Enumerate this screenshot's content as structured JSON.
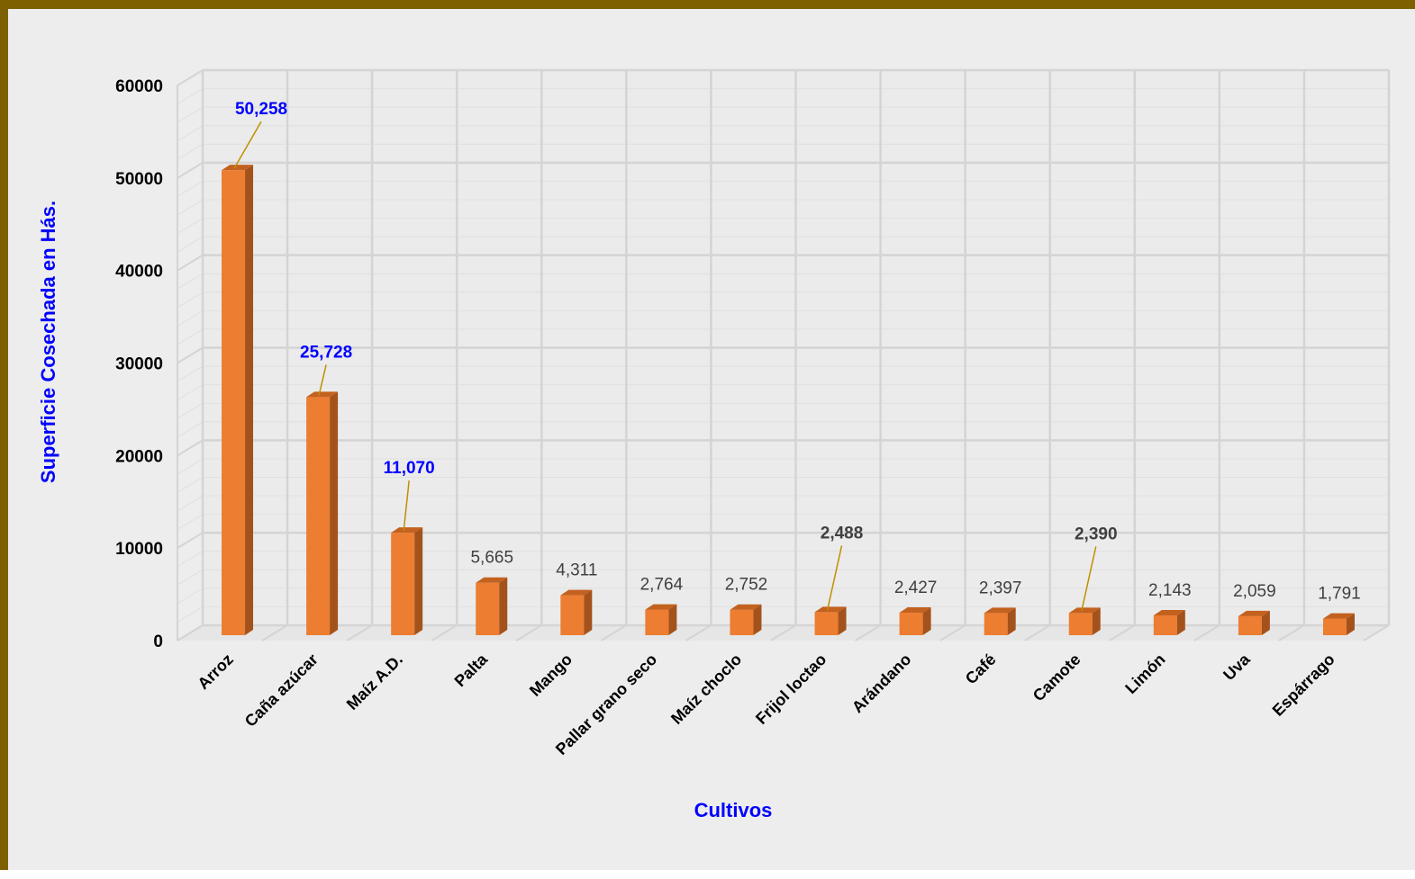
{
  "chart_data": {
    "type": "bar",
    "title": "",
    "xlabel": "Cultivos",
    "ylabel": "Superficie Cosechada en Hás.",
    "categories": [
      "Arroz",
      "Caña azúcar",
      "Maíz A.D.",
      "Palta",
      "Mango",
      "Pallar grano seco",
      "Maíz choclo",
      "Frijol loctao",
      "Arándano",
      "Café",
      "Camote",
      "Limón",
      "Uva",
      "Espárrago"
    ],
    "values": [
      50258,
      25728,
      11070,
      5665,
      4311,
      2764,
      2752,
      2488,
      2427,
      2397,
      2390,
      2143,
      2059,
      1791
    ],
    "data_labels": [
      "50,258",
      "25,728",
      "11,070",
      "5,665",
      "4,311",
      "2,764",
      "2,752",
      "2,488",
      "2,427",
      "2,397",
      "2,390",
      "2,143",
      "2,059",
      "1,791"
    ],
    "yticks": [
      "0",
      "10000",
      "20000",
      "30000",
      "40000",
      "50000",
      "60000"
    ],
    "ylim": [
      0,
      60000
    ],
    "grid": true,
    "legend": "none",
    "colors": {
      "bar_front": "#ED7D31",
      "bar_side": "#A4521B",
      "bar_top": "#C3611F",
      "axis_title": "#0000FF",
      "highlight_label": "#0000FF",
      "emphasis_label": "#404040",
      "label": "#404040",
      "leader_line": "#BF9000",
      "frame": "#7F6000",
      "background": "#EDEDED",
      "grid": "#D9D9D9"
    },
    "label_styles": [
      "highlight",
      "highlight",
      "highlight",
      "normal",
      "normal",
      "normal",
      "normal",
      "emphasis",
      "normal",
      "normal",
      "emphasis",
      "normal",
      "normal",
      "normal"
    ]
  }
}
